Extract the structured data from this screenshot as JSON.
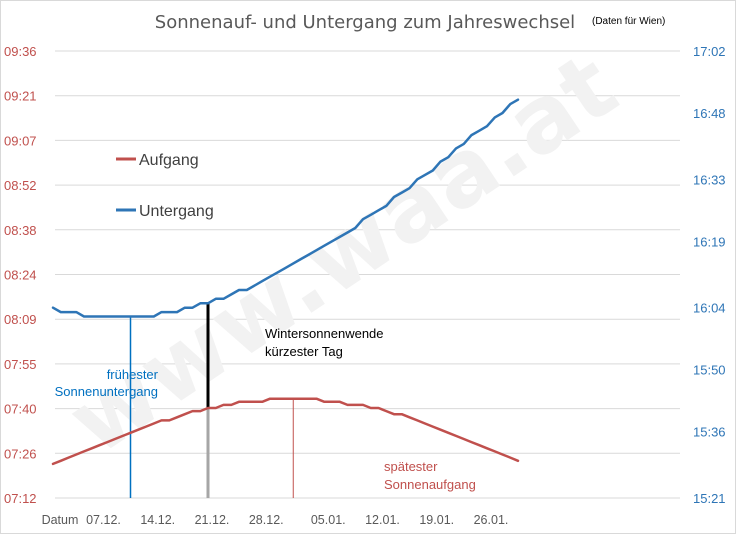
{
  "chart_data": {
    "type": "line",
    "title": "Sonnenauf- und Untergang zum Jahreswechsel",
    "subtitle": "(Daten für Wien)",
    "watermark": "www.waa.at",
    "x_axis": {
      "first_label": "Datum",
      "tick_labels": [
        "07.12.",
        "14.12.",
        "21.12.",
        "28.12.",
        "05.01.",
        "12.01.",
        "19.01.",
        "26.01."
      ]
    },
    "y_left": {
      "tick_labels": [
        "07:12",
        "07:26",
        "07:40",
        "07:55",
        "08:09",
        "08:24",
        "08:38",
        "08:52",
        "09:07",
        "09:21",
        "09:36"
      ],
      "range": [
        "07:12",
        "09:36"
      ],
      "color": "#c0504d"
    },
    "y_right": {
      "tick_labels": [
        "15:21",
        "15:36",
        "15:50",
        "16:04",
        "16:19",
        "16:33",
        "16:48",
        "17:02"
      ],
      "range": [
        "15:21",
        "17:02"
      ],
      "color": "#2e75b6"
    },
    "grid": true,
    "legend_position": "upper-left",
    "series": [
      {
        "name": "Aufgang",
        "axis": "left",
        "color": "#c0504d",
        "x_start": "01.12.",
        "x_end": "31.01.",
        "values": [
          "07:23",
          "07:24",
          "07:25",
          "07:26",
          "07:27",
          "07:28",
          "07:29",
          "07:30",
          "07:31",
          "07:32",
          "07:33",
          "07:34",
          "07:35",
          "07:36",
          "07:37",
          "07:37",
          "07:38",
          "07:39",
          "07:40",
          "07:40",
          "07:41",
          "07:41",
          "07:42",
          "07:42",
          "07:43",
          "07:43",
          "07:43",
          "07:43",
          "07:44",
          "07:44",
          "07:44",
          "07:44",
          "07:44",
          "07:44",
          "07:44",
          "07:43",
          "07:43",
          "07:43",
          "07:42",
          "07:42",
          "07:42",
          "07:41",
          "07:41",
          "07:40",
          "07:39",
          "07:39",
          "07:38",
          "07:37",
          "07:36",
          "07:35",
          "07:34",
          "07:33",
          "07:32",
          "07:31",
          "07:30",
          "07:29",
          "07:28",
          "07:27",
          "07:26",
          "07:25",
          "07:24"
        ]
      },
      {
        "name": "Untergang",
        "axis": "right",
        "color": "#2e75b6",
        "x_start": "01.12.",
        "x_end": "31.01.",
        "values": [
          "16:04",
          "16:03",
          "16:03",
          "16:03",
          "16:02",
          "16:02",
          "16:02",
          "16:02",
          "16:02",
          "16:02",
          "16:02",
          "16:02",
          "16:02",
          "16:02",
          "16:03",
          "16:03",
          "16:03",
          "16:04",
          "16:04",
          "16:05",
          "16:05",
          "16:06",
          "16:06",
          "16:07",
          "16:08",
          "16:08",
          "16:09",
          "16:10",
          "16:11",
          "16:12",
          "16:13",
          "16:14",
          "16:15",
          "16:16",
          "16:17",
          "16:18",
          "16:19",
          "16:20",
          "16:21",
          "16:22",
          "16:24",
          "16:25",
          "16:26",
          "16:27",
          "16:29",
          "16:30",
          "16:31",
          "16:33",
          "16:34",
          "16:35",
          "16:37",
          "16:38",
          "16:40",
          "16:41",
          "16:43",
          "16:44",
          "16:45",
          "16:47",
          "16:48",
          "16:50",
          "16:51"
        ]
      }
    ],
    "annotations": [
      {
        "id": "earliest-sunset",
        "lines": [
          "frühester",
          "Sonnenuntergang"
        ],
        "date": "11.12.",
        "color": "#0070c0"
      },
      {
        "id": "solstice",
        "lines": [
          "Wintersonnenwende",
          "kürzester Tag"
        ],
        "date": "21.12.",
        "color": "#000000"
      },
      {
        "id": "latest-sunrise",
        "lines": [
          "spätester",
          "Sonnenaufgang"
        ],
        "date": "01.01.",
        "color": "#c0504d"
      }
    ]
  }
}
